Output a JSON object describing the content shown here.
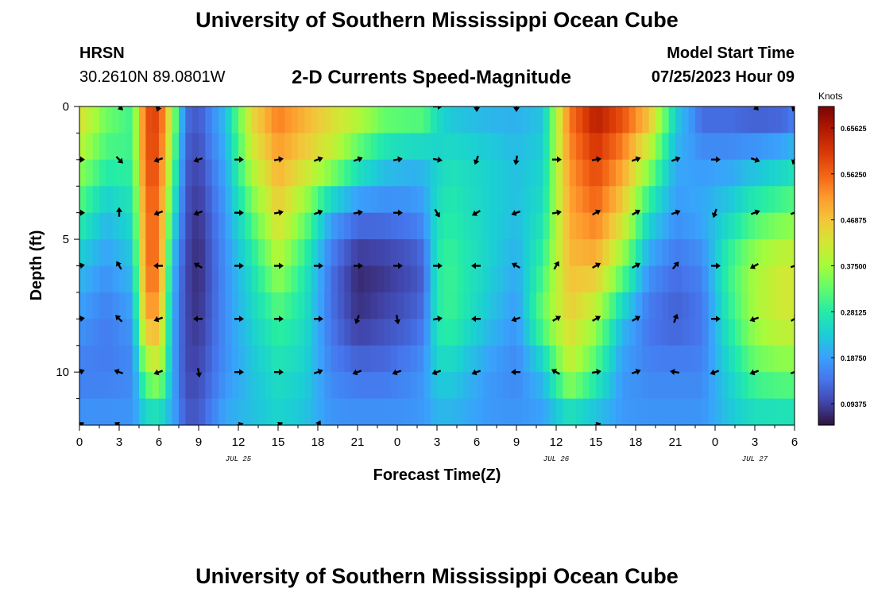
{
  "header": {
    "title": "University of Southern Mississippi Ocean Cube",
    "station": "HRSN",
    "coords": "30.2610N  89.0801W",
    "model_start_label": "Model Start Time",
    "model_start_value": "07/25/2023 Hour 09",
    "footer_title": "University of Southern Mississippi Ocean Cube"
  },
  "colors": {
    "scale": [
      "#30123b",
      "#4145ab",
      "#4675ed",
      "#39a2fc",
      "#1bcfd4",
      "#24eca6",
      "#61fc6c",
      "#a4fc3b",
      "#d1e834",
      "#f3c63a",
      "#fe9b2d",
      "#f36315",
      "#d93806",
      "#b11901",
      "#7a0402"
    ]
  },
  "chart_data": {
    "type": "heatmap",
    "title": "2-D Currents Speed-Magnitude",
    "xlabel": "Forecast Time(Z)",
    "ylabel": "Depth (ft)",
    "x_ticks": [
      "0",
      "3",
      "6",
      "9",
      "12",
      "15",
      "18",
      "21",
      "0",
      "3",
      "6",
      "9",
      "12",
      "15",
      "18",
      "21",
      "0",
      "3",
      "6"
    ],
    "x_range_hours": [
      0,
      54
    ],
    "date_labels": [
      {
        "text": "JUL 25",
        "hour": 12
      },
      {
        "text": "JUL 26",
        "hour": 36
      },
      {
        "text": "JUL 27",
        "hour": 51
      }
    ],
    "y_ticks": [
      "0",
      "5",
      "10"
    ],
    "y_tick_values": [
      0,
      5,
      10
    ],
    "ylim": [
      0,
      12
    ],
    "colorbar": {
      "label": "Knots",
      "min": 0.05,
      "max": 0.7,
      "tick_labels": [
        "0.65625",
        "0.56250",
        "0.46875",
        "0.37500",
        "0.28125",
        "0.18750",
        "0.09375"
      ],
      "tick_values": [
        0.65625,
        0.5625,
        0.46875,
        0.375,
        0.28125,
        0.1875,
        0.09375
      ]
    },
    "depths_ft": [
      0,
      2,
      4,
      6,
      8,
      10,
      12
    ],
    "speed_profiles_knots": [
      {
        "hour": 0,
        "values": [
          0.45,
          0.38,
          0.3,
          0.22,
          0.18,
          0.15,
          0.18
        ]
      },
      {
        "hour": 2,
        "values": [
          0.35,
          0.3,
          0.22,
          0.18,
          0.15,
          0.15,
          0.18
        ]
      },
      {
        "hour": 4,
        "values": [
          0.3,
          0.3,
          0.26,
          0.22,
          0.18,
          0.16,
          0.18
        ]
      },
      {
        "hour": 5,
        "values": [
          0.58,
          0.58,
          0.55,
          0.55,
          0.5,
          0.35,
          0.22
        ]
      },
      {
        "hour": 6,
        "values": [
          0.6,
          0.58,
          0.55,
          0.55,
          0.5,
          0.4,
          0.22
        ]
      },
      {
        "hour": 7,
        "values": [
          0.4,
          0.35,
          0.28,
          0.22,
          0.2,
          0.2,
          0.2
        ]
      },
      {
        "hour": 8,
        "values": [
          0.14,
          0.12,
          0.11,
          0.1,
          0.1,
          0.1,
          0.12
        ]
      },
      {
        "hour": 9,
        "values": [
          0.12,
          0.1,
          0.08,
          0.07,
          0.08,
          0.1,
          0.12
        ]
      },
      {
        "hour": 11,
        "values": [
          0.22,
          0.2,
          0.18,
          0.17,
          0.17,
          0.17,
          0.2
        ]
      },
      {
        "hour": 13,
        "values": [
          0.45,
          0.4,
          0.32,
          0.26,
          0.24,
          0.22,
          0.22
        ]
      },
      {
        "hour": 15,
        "values": [
          0.55,
          0.5,
          0.45,
          0.38,
          0.3,
          0.26,
          0.24
        ]
      },
      {
        "hour": 17,
        "values": [
          0.5,
          0.45,
          0.35,
          0.28,
          0.26,
          0.24,
          0.22
        ]
      },
      {
        "hour": 19,
        "values": [
          0.45,
          0.4,
          0.2,
          0.14,
          0.14,
          0.16,
          0.18
        ]
      },
      {
        "hour": 21,
        "values": [
          0.42,
          0.3,
          0.15,
          0.07,
          0.08,
          0.14,
          0.18
        ]
      },
      {
        "hour": 23,
        "values": [
          0.36,
          0.24,
          0.15,
          0.08,
          0.1,
          0.14,
          0.18
        ]
      },
      {
        "hour": 25,
        "values": [
          0.35,
          0.22,
          0.16,
          0.1,
          0.12,
          0.16,
          0.18
        ]
      },
      {
        "hour": 26,
        "values": [
          0.35,
          0.22,
          0.18,
          0.12,
          0.14,
          0.18,
          0.18
        ]
      },
      {
        "hour": 27,
        "values": [
          0.26,
          0.24,
          0.26,
          0.28,
          0.28,
          0.24,
          0.2
        ]
      },
      {
        "hour": 28,
        "values": [
          0.22,
          0.26,
          0.28,
          0.3,
          0.3,
          0.24,
          0.2
        ]
      },
      {
        "hour": 31,
        "values": [
          0.2,
          0.24,
          0.24,
          0.24,
          0.22,
          0.18,
          0.18
        ]
      },
      {
        "hour": 33,
        "values": [
          0.2,
          0.22,
          0.22,
          0.2,
          0.18,
          0.16,
          0.18
        ]
      },
      {
        "hour": 35,
        "values": [
          0.22,
          0.24,
          0.26,
          0.3,
          0.34,
          0.22,
          0.18
        ]
      },
      {
        "hour": 37,
        "values": [
          0.55,
          0.52,
          0.5,
          0.48,
          0.45,
          0.4,
          0.22
        ]
      },
      {
        "hour": 39,
        "values": [
          0.66,
          0.6,
          0.55,
          0.48,
          0.38,
          0.3,
          0.2
        ]
      },
      {
        "hour": 41,
        "values": [
          0.6,
          0.52,
          0.45,
          0.35,
          0.22,
          0.18,
          0.18
        ]
      },
      {
        "hour": 43,
        "values": [
          0.5,
          0.38,
          0.26,
          0.18,
          0.14,
          0.16,
          0.18
        ]
      },
      {
        "hour": 45,
        "values": [
          0.25,
          0.2,
          0.18,
          0.14,
          0.12,
          0.16,
          0.18
        ]
      },
      {
        "hour": 47,
        "values": [
          0.12,
          0.18,
          0.2,
          0.16,
          0.14,
          0.16,
          0.18
        ]
      },
      {
        "hour": 49,
        "values": [
          0.12,
          0.18,
          0.24,
          0.3,
          0.28,
          0.24,
          0.22
        ]
      },
      {
        "hour": 51,
        "values": [
          0.1,
          0.2,
          0.3,
          0.38,
          0.38,
          0.32,
          0.24
        ]
      },
      {
        "hour": 53,
        "values": [
          0.1,
          0.22,
          0.33,
          0.42,
          0.42,
          0.34,
          0.24
        ]
      },
      {
        "hour": 54,
        "values": [
          0.12,
          0.24,
          0.34,
          0.42,
          0.42,
          0.34,
          0.24
        ]
      }
    ],
    "arrows": [
      {
        "hour": 0,
        "depth": 2,
        "dir_deg": 90
      },
      {
        "hour": 3,
        "depth": 2,
        "dir_deg": 135
      },
      {
        "hour": 6,
        "depth": 2,
        "dir_deg": 250
      },
      {
        "hour": 9,
        "depth": 2,
        "dir_deg": 250
      },
      {
        "hour": 12,
        "depth": 2,
        "dir_deg": 90
      },
      {
        "hour": 15,
        "depth": 2,
        "dir_deg": 80
      },
      {
        "hour": 18,
        "depth": 2,
        "dir_deg": 70
      },
      {
        "hour": 21,
        "depth": 2,
        "dir_deg": 70
      },
      {
        "hour": 24,
        "depth": 2,
        "dir_deg": 80
      },
      {
        "hour": 27,
        "depth": 2,
        "dir_deg": 100
      },
      {
        "hour": 30,
        "depth": 2,
        "dir_deg": 200
      },
      {
        "hour": 33,
        "depth": 2,
        "dir_deg": 190
      },
      {
        "hour": 36,
        "depth": 2,
        "dir_deg": 90
      },
      {
        "hour": 39,
        "depth": 2,
        "dir_deg": 80
      },
      {
        "hour": 42,
        "depth": 2,
        "dir_deg": 70
      },
      {
        "hour": 45,
        "depth": 2,
        "dir_deg": 70
      },
      {
        "hour": 48,
        "depth": 2,
        "dir_deg": 90
      },
      {
        "hour": 51,
        "depth": 2,
        "dir_deg": 110
      },
      {
        "hour": 54,
        "depth": 2,
        "dir_deg": 200
      },
      {
        "hour": 0,
        "depth": 4,
        "dir_deg": 90
      },
      {
        "hour": 3,
        "depth": 4,
        "dir_deg": 0
      },
      {
        "hour": 6,
        "depth": 4,
        "dir_deg": 250
      },
      {
        "hour": 9,
        "depth": 4,
        "dir_deg": 250
      },
      {
        "hour": 12,
        "depth": 4,
        "dir_deg": 90
      },
      {
        "hour": 15,
        "depth": 4,
        "dir_deg": 80
      },
      {
        "hour": 18,
        "depth": 4,
        "dir_deg": 70
      },
      {
        "hour": 21,
        "depth": 4,
        "dir_deg": 80
      },
      {
        "hour": 24,
        "depth": 4,
        "dir_deg": 90
      },
      {
        "hour": 27,
        "depth": 4,
        "dir_deg": 150
      },
      {
        "hour": 30,
        "depth": 4,
        "dir_deg": 240
      },
      {
        "hour": 33,
        "depth": 4,
        "dir_deg": 250
      },
      {
        "hour": 36,
        "depth": 4,
        "dir_deg": 80
      },
      {
        "hour": 39,
        "depth": 4,
        "dir_deg": 60
      },
      {
        "hour": 42,
        "depth": 4,
        "dir_deg": 60
      },
      {
        "hour": 45,
        "depth": 4,
        "dir_deg": 70
      },
      {
        "hour": 48,
        "depth": 4,
        "dir_deg": 200
      },
      {
        "hour": 51,
        "depth": 4,
        "dir_deg": 70
      },
      {
        "hour": 54,
        "depth": 4,
        "dir_deg": 70
      },
      {
        "hour": 0,
        "depth": 6,
        "dir_deg": 80
      },
      {
        "hour": 3,
        "depth": 6,
        "dir_deg": 330
      },
      {
        "hour": 6,
        "depth": 6,
        "dir_deg": 270
      },
      {
        "hour": 9,
        "depth": 6,
        "dir_deg": 300
      },
      {
        "hour": 12,
        "depth": 6,
        "dir_deg": 90
      },
      {
        "hour": 15,
        "depth": 6,
        "dir_deg": 90
      },
      {
        "hour": 18,
        "depth": 6,
        "dir_deg": 90
      },
      {
        "hour": 21,
        "depth": 6,
        "dir_deg": 90
      },
      {
        "hour": 24,
        "depth": 6,
        "dir_deg": 90
      },
      {
        "hour": 27,
        "depth": 6,
        "dir_deg": 90
      },
      {
        "hour": 30,
        "depth": 6,
        "dir_deg": 270
      },
      {
        "hour": 33,
        "depth": 6,
        "dir_deg": 300
      },
      {
        "hour": 36,
        "depth": 6,
        "dir_deg": 30
      },
      {
        "hour": 39,
        "depth": 6,
        "dir_deg": 60
      },
      {
        "hour": 42,
        "depth": 6,
        "dir_deg": 60
      },
      {
        "hour": 45,
        "depth": 6,
        "dir_deg": 40
      },
      {
        "hour": 48,
        "depth": 6,
        "dir_deg": 90
      },
      {
        "hour": 51,
        "depth": 6,
        "dir_deg": 240
      },
      {
        "hour": 54,
        "depth": 6,
        "dir_deg": 70
      },
      {
        "hour": 0,
        "depth": 8,
        "dir_deg": 80
      },
      {
        "hour": 3,
        "depth": 8,
        "dir_deg": 315
      },
      {
        "hour": 6,
        "depth": 8,
        "dir_deg": 250
      },
      {
        "hour": 9,
        "depth": 8,
        "dir_deg": 270
      },
      {
        "hour": 12,
        "depth": 8,
        "dir_deg": 90
      },
      {
        "hour": 15,
        "depth": 8,
        "dir_deg": 90
      },
      {
        "hour": 18,
        "depth": 8,
        "dir_deg": 90
      },
      {
        "hour": 21,
        "depth": 8,
        "dir_deg": 200
      },
      {
        "hour": 24,
        "depth": 8,
        "dir_deg": 170
      },
      {
        "hour": 27,
        "depth": 8,
        "dir_deg": 80
      },
      {
        "hour": 30,
        "depth": 8,
        "dir_deg": 270
      },
      {
        "hour": 33,
        "depth": 8,
        "dir_deg": 250
      },
      {
        "hour": 36,
        "depth": 8,
        "dir_deg": 60
      },
      {
        "hour": 39,
        "depth": 8,
        "dir_deg": 60
      },
      {
        "hour": 42,
        "depth": 8,
        "dir_deg": 60
      },
      {
        "hour": 45,
        "depth": 8,
        "dir_deg": 20
      },
      {
        "hour": 48,
        "depth": 8,
        "dir_deg": 90
      },
      {
        "hour": 51,
        "depth": 8,
        "dir_deg": 250
      },
      {
        "hour": 54,
        "depth": 8,
        "dir_deg": 60
      },
      {
        "hour": 0,
        "depth": 10,
        "dir_deg": 70
      },
      {
        "hour": 3,
        "depth": 10,
        "dir_deg": 290
      },
      {
        "hour": 6,
        "depth": 10,
        "dir_deg": 250
      },
      {
        "hour": 9,
        "depth": 10,
        "dir_deg": 170
      },
      {
        "hour": 12,
        "depth": 10,
        "dir_deg": 90
      },
      {
        "hour": 15,
        "depth": 10,
        "dir_deg": 90
      },
      {
        "hour": 18,
        "depth": 10,
        "dir_deg": 70
      },
      {
        "hour": 21,
        "depth": 10,
        "dir_deg": 250
      },
      {
        "hour": 24,
        "depth": 10,
        "dir_deg": 250
      },
      {
        "hour": 27,
        "depth": 10,
        "dir_deg": 250
      },
      {
        "hour": 30,
        "depth": 10,
        "dir_deg": 250
      },
      {
        "hour": 33,
        "depth": 10,
        "dir_deg": 270
      },
      {
        "hour": 36,
        "depth": 10,
        "dir_deg": 300
      },
      {
        "hour": 39,
        "depth": 10,
        "dir_deg": 80
      },
      {
        "hour": 42,
        "depth": 10,
        "dir_deg": 70
      },
      {
        "hour": 45,
        "depth": 10,
        "dir_deg": 280
      },
      {
        "hour": 48,
        "depth": 10,
        "dir_deg": 250
      },
      {
        "hour": 51,
        "depth": 10,
        "dir_deg": 250
      },
      {
        "hour": 54,
        "depth": 10,
        "dir_deg": 70
      },
      {
        "hour": 0,
        "depth": 12,
        "dir_deg": 60
      },
      {
        "hour": 3,
        "depth": 12,
        "dir_deg": 300
      },
      {
        "hour": 12,
        "depth": 12,
        "dir_deg": 70
      },
      {
        "hour": 15,
        "depth": 12,
        "dir_deg": 60
      },
      {
        "hour": 18,
        "depth": 12,
        "dir_deg": 30
      },
      {
        "hour": 39,
        "depth": 12,
        "dir_deg": 70
      },
      {
        "hour": 3,
        "depth": 0,
        "dir_deg": 135
      },
      {
        "hour": 6,
        "depth": 0,
        "dir_deg": 200
      },
      {
        "hour": 27,
        "depth": 0,
        "dir_deg": 90
      },
      {
        "hour": 30,
        "depth": 0,
        "dir_deg": 180
      },
      {
        "hour": 33,
        "depth": 0,
        "dir_deg": 180
      },
      {
        "hour": 51,
        "depth": 0,
        "dir_deg": 135
      },
      {
        "hour": 54,
        "depth": 0,
        "dir_deg": 200
      }
    ]
  }
}
